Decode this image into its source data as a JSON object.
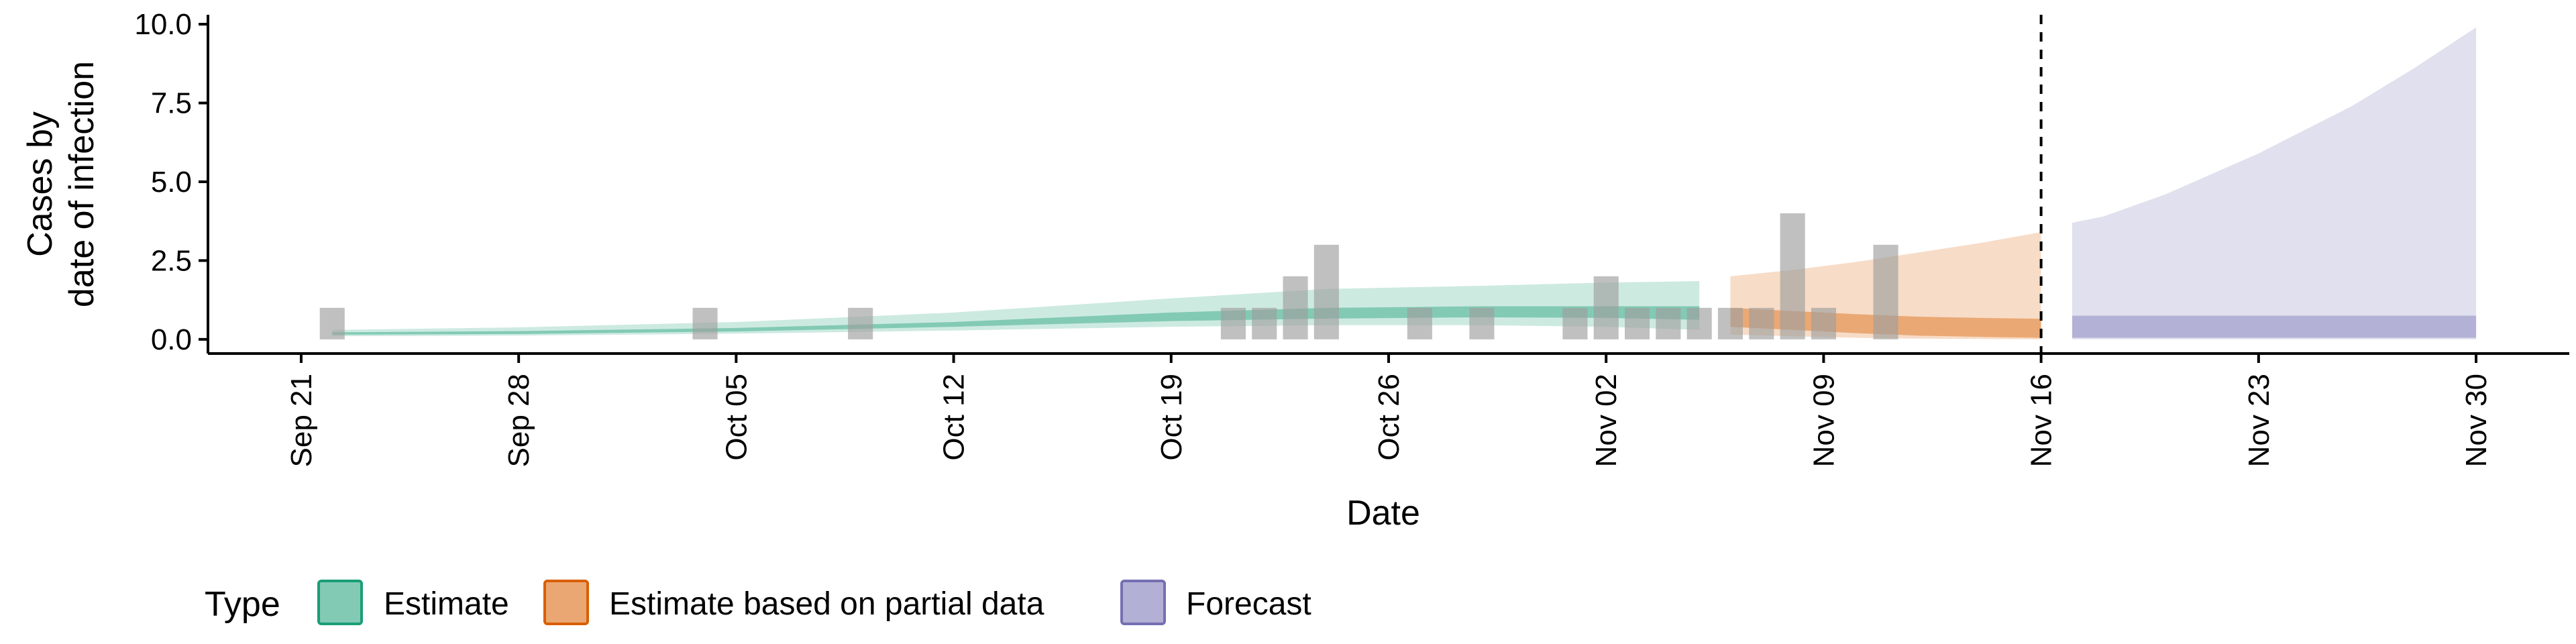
{
  "chart_data": {
    "type": "area",
    "xlabel": "Date",
    "ylabel": [
      "Cases by",
      "date of infection"
    ],
    "x_range": [
      "2024-09-18",
      "2024-12-03"
    ],
    "ylim": [
      -0.45,
      10.3
    ],
    "y_ticks": [
      0.0,
      2.5,
      5.0,
      7.5,
      10.0
    ],
    "y_tick_labels": [
      "0.0",
      "2.5",
      "5.0",
      "7.5",
      "10.0"
    ],
    "x_ticks": [
      "2024-09-21",
      "2024-09-28",
      "2024-10-05",
      "2024-10-12",
      "2024-10-19",
      "2024-10-26",
      "2024-11-02",
      "2024-11-09",
      "2024-11-16",
      "2024-11-23",
      "2024-11-30"
    ],
    "x_tick_labels": [
      "Sep 21",
      "Sep 28",
      "Oct 05",
      "Oct 12",
      "Oct 19",
      "Oct 26",
      "Nov 02",
      "Nov 09",
      "Nov 16",
      "Nov 23",
      "Nov 30"
    ],
    "grid": false,
    "forecast_line_date": "2024-11-16",
    "observed_cases": [
      {
        "date": "2024-09-22",
        "value": 1
      },
      {
        "date": "2024-10-04",
        "value": 1
      },
      {
        "date": "2024-10-09",
        "value": 1
      },
      {
        "date": "2024-10-21",
        "value": 1
      },
      {
        "date": "2024-10-22",
        "value": 1
      },
      {
        "date": "2024-10-23",
        "value": 2
      },
      {
        "date": "2024-10-24",
        "value": 3
      },
      {
        "date": "2024-10-27",
        "value": 1
      },
      {
        "date": "2024-10-29",
        "value": 1
      },
      {
        "date": "2024-11-01",
        "value": 1
      },
      {
        "date": "2024-11-02",
        "value": 2
      },
      {
        "date": "2024-11-03",
        "value": 1
      },
      {
        "date": "2024-11-04",
        "value": 1
      },
      {
        "date": "2024-11-05",
        "value": 1
      },
      {
        "date": "2024-11-06",
        "value": 1
      },
      {
        "date": "2024-11-07",
        "value": 1
      },
      {
        "date": "2024-11-08",
        "value": 4
      },
      {
        "date": "2024-11-09",
        "value": 1
      },
      {
        "date": "2024-11-11",
        "value": 3
      }
    ],
    "series": [
      {
        "name": "Estimate",
        "color": "#1b9e77",
        "x": [
          "2024-09-22",
          "2024-09-28",
          "2024-10-05",
          "2024-10-12",
          "2024-10-19",
          "2024-10-24",
          "2024-10-29",
          "2024-11-02",
          "2024-11-05"
        ],
        "outer_low": [
          0.1,
          0.12,
          0.18,
          0.28,
          0.4,
          0.45,
          0.45,
          0.4,
          0.3
        ],
        "outer_high": [
          0.3,
          0.38,
          0.55,
          0.85,
          1.3,
          1.6,
          1.7,
          1.8,
          1.85
        ],
        "inner_low": [
          0.15,
          0.17,
          0.25,
          0.4,
          0.58,
          0.66,
          0.7,
          0.68,
          0.62
        ],
        "inner_high": [
          0.22,
          0.26,
          0.36,
          0.55,
          0.85,
          1.0,
          1.05,
          1.05,
          1.05
        ]
      },
      {
        "name": "Estimate based on partial data",
        "color": "#d95f02",
        "x": [
          "2024-11-06",
          "2024-11-08",
          "2024-11-10",
          "2024-11-12",
          "2024-11-14",
          "2024-11-16"
        ],
        "outer_low": [
          0.15,
          0.1,
          0.05,
          0.02,
          0.01,
          0.0
        ],
        "outer_high": [
          2.0,
          2.2,
          2.45,
          2.75,
          3.05,
          3.4
        ],
        "inner_low": [
          0.4,
          0.3,
          0.2,
          0.12,
          0.08,
          0.05
        ],
        "inner_high": [
          1.0,
          0.9,
          0.8,
          0.72,
          0.68,
          0.65
        ]
      },
      {
        "name": "Forecast",
        "color": "#7570b3",
        "x": [
          "2024-11-17",
          "2024-11-18",
          "2024-11-20",
          "2024-11-23",
          "2024-11-26",
          "2024-11-28",
          "2024-11-30"
        ],
        "outer_low": [
          0.0,
          0.0,
          0.0,
          0.0,
          0.0,
          0.0,
          0.0
        ],
        "outer_high": [
          3.7,
          3.9,
          4.6,
          5.9,
          7.4,
          8.6,
          9.9
        ],
        "inner_low": [
          0.05,
          0.05,
          0.05,
          0.05,
          0.05,
          0.05,
          0.05
        ],
        "inner_high": [
          0.75,
          0.75,
          0.75,
          0.75,
          0.75,
          0.75,
          0.75
        ]
      }
    ],
    "legend": {
      "title": "Type",
      "position": "bottom",
      "entries": [
        "Estimate",
        "Estimate based on partial data",
        "Forecast"
      ]
    },
    "colors": {
      "bars": "#9e9e9e",
      "forecast_line": "#000000",
      "axis": "#000000"
    }
  }
}
